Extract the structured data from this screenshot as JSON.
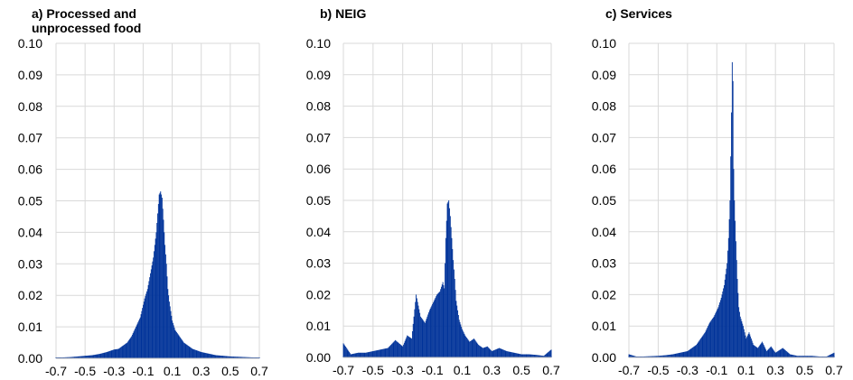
{
  "chart_data": [
    {
      "type": "bar",
      "title": "a) Processed and unprocessed food",
      "title_lines": [
        "a) Processed and",
        "unprocessed food"
      ],
      "color": "#003399",
      "xlim": [
        -0.7,
        0.7
      ],
      "ylim": [
        0,
        0.1
      ],
      "xticks": [
        "-0.7",
        "-0.5",
        "-0.3",
        "-0.1",
        "0.1",
        "0.3",
        "0.5",
        "0.7"
      ],
      "yticks": [
        "0.00",
        "0.01",
        "0.02",
        "0.03",
        "0.04",
        "0.05",
        "0.06",
        "0.07",
        "0.08",
        "0.09",
        "0.10"
      ],
      "grid": true,
      "bins": {
        "x": [
          -0.7,
          -0.65,
          -0.6,
          -0.55,
          -0.5,
          -0.45,
          -0.4,
          -0.35,
          -0.3,
          -0.27,
          -0.24,
          -0.21,
          -0.18,
          -0.15,
          -0.12,
          -0.09,
          -0.07,
          -0.05,
          -0.03,
          -0.01,
          0.0,
          0.01,
          0.02,
          0.03,
          0.04,
          0.05,
          0.06,
          0.07,
          0.08,
          0.1,
          0.12,
          0.15,
          0.18,
          0.21,
          0.24,
          0.27,
          0.3,
          0.35,
          0.4,
          0.45,
          0.5,
          0.55,
          0.6,
          0.65,
          0.7
        ],
        "y": [
          0.0003,
          0.0003,
          0.0004,
          0.0006,
          0.0008,
          0.001,
          0.0014,
          0.002,
          0.0028,
          0.003,
          0.004,
          0.005,
          0.007,
          0.01,
          0.013,
          0.019,
          0.022,
          0.027,
          0.032,
          0.04,
          0.046,
          0.052,
          0.053,
          0.051,
          0.044,
          0.036,
          0.03,
          0.022,
          0.018,
          0.012,
          0.009,
          0.007,
          0.005,
          0.004,
          0.003,
          0.0025,
          0.002,
          0.0015,
          0.001,
          0.0008,
          0.0006,
          0.0005,
          0.0004,
          0.0003,
          0.0003
        ]
      }
    },
    {
      "type": "bar",
      "title": "b) NEIG",
      "title_lines": [
        "b) NEIG"
      ],
      "color": "#003399",
      "xlim": [
        -0.7,
        0.7
      ],
      "ylim": [
        0,
        0.1
      ],
      "xticks": [
        "-0.7",
        "-0.5",
        "-0.3",
        "-0.1",
        "0.1",
        "0.3",
        "0.5",
        "0.7"
      ],
      "yticks": [
        "0.00",
        "0.01",
        "0.02",
        "0.03",
        "0.04",
        "0.05",
        "0.06",
        "0.07",
        "0.08",
        "0.09",
        "0.10"
      ],
      "grid": true,
      "bins": {
        "x": [
          -0.7,
          -0.65,
          -0.6,
          -0.55,
          -0.5,
          -0.45,
          -0.4,
          -0.35,
          -0.3,
          -0.27,
          -0.24,
          -0.21,
          -0.18,
          -0.15,
          -0.12,
          -0.09,
          -0.07,
          -0.05,
          -0.03,
          -0.02,
          -0.01,
          0.0,
          0.01,
          0.02,
          0.03,
          0.04,
          0.05,
          0.06,
          0.08,
          0.1,
          0.12,
          0.15,
          0.18,
          0.21,
          0.24,
          0.27,
          0.3,
          0.35,
          0.4,
          0.45,
          0.5,
          0.55,
          0.6,
          0.65,
          0.7
        ],
        "y": [
          0.0045,
          0.001,
          0.0015,
          0.0015,
          0.002,
          0.0025,
          0.003,
          0.0055,
          0.0035,
          0.007,
          0.006,
          0.02,
          0.013,
          0.011,
          0.015,
          0.018,
          0.02,
          0.021,
          0.024,
          0.022,
          0.038,
          0.049,
          0.05,
          0.045,
          0.038,
          0.031,
          0.025,
          0.018,
          0.012,
          0.009,
          0.007,
          0.005,
          0.006,
          0.004,
          0.003,
          0.0035,
          0.002,
          0.003,
          0.002,
          0.0015,
          0.001,
          0.001,
          0.0008,
          0.0005,
          0.0025
        ]
      }
    },
    {
      "type": "bar",
      "title": "c) Services",
      "title_lines": [
        "c) Services"
      ],
      "color": "#003399",
      "xlim": [
        -0.7,
        0.7
      ],
      "ylim": [
        0,
        0.1
      ],
      "xticks": [
        "-0.7",
        "-0.5",
        "-0.3",
        "-0.1",
        "0.1",
        "0.3",
        "0.5",
        "0.7"
      ],
      "yticks": [
        "0.00",
        "0.01",
        "0.02",
        "0.03",
        "0.04",
        "0.05",
        "0.06",
        "0.07",
        "0.08",
        "0.09",
        "0.10"
      ],
      "grid": true,
      "bins": {
        "x": [
          -0.7,
          -0.65,
          -0.6,
          -0.55,
          -0.5,
          -0.45,
          -0.4,
          -0.35,
          -0.3,
          -0.27,
          -0.24,
          -0.21,
          -0.18,
          -0.15,
          -0.12,
          -0.09,
          -0.07,
          -0.05,
          -0.03,
          -0.02,
          -0.01,
          0.0,
          0.005,
          0.01,
          0.015,
          0.02,
          0.03,
          0.04,
          0.05,
          0.06,
          0.08,
          0.1,
          0.12,
          0.15,
          0.18,
          0.21,
          0.24,
          0.27,
          0.3,
          0.35,
          0.4,
          0.45,
          0.5,
          0.55,
          0.6,
          0.65,
          0.7
        ],
        "y": [
          0.001,
          0.0003,
          0.0003,
          0.0004,
          0.0005,
          0.0007,
          0.001,
          0.0015,
          0.002,
          0.003,
          0.004,
          0.006,
          0.008,
          0.011,
          0.013,
          0.016,
          0.019,
          0.023,
          0.03,
          0.038,
          0.05,
          0.078,
          0.094,
          0.088,
          0.06,
          0.05,
          0.037,
          0.025,
          0.016,
          0.013,
          0.01,
          0.006,
          0.008,
          0.004,
          0.003,
          0.005,
          0.002,
          0.0035,
          0.0015,
          0.003,
          0.001,
          0.0005,
          0.0005,
          0.0005,
          0.0003,
          0.0003,
          0.0015
        ]
      }
    }
  ]
}
